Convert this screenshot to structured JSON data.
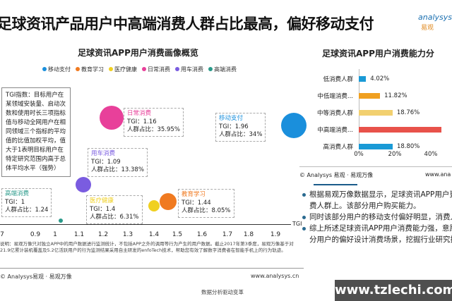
{
  "title": "足球资讯产品用户中高端消费人群占比最高，偏好移动支付",
  "logo": {
    "name": "analysys",
    "sub": "易观"
  },
  "chart_data": [
    {
      "type": "scatter",
      "title": "足球资讯APP用户消费画像概览",
      "xlabel": "TGI",
      "xticks": [
        "7",
        "0.9",
        "1",
        "1.1",
        "1.2",
        "1.3",
        "1.4",
        "1.5",
        "1.6",
        "1.7",
        "1.8",
        "1.9"
      ],
      "legend": [
        "移动支付",
        "教育学习",
        "医疗健康",
        "日常消费",
        "用车消费",
        "高端消费"
      ],
      "series": [
        {
          "name": "移动支付",
          "tgi": 1.96,
          "share_label": "34%",
          "share": 34,
          "color": "#1a8fdc",
          "tgi_label": "TGI：1.96",
          "share_text": "人群占比：34%"
        },
        {
          "name": "日常消费",
          "tgi": 1.16,
          "share": 35.95,
          "color": "#e8409a",
          "tgi_label": "TGI：1.16",
          "share_text": "人群占比：35.95%"
        },
        {
          "name": "用车消费",
          "tgi": 1.09,
          "share": 13.38,
          "color": "#7a5ce0",
          "tgi_label": "TGI：1.09",
          "share_text": "人群占比：13.38%"
        },
        {
          "name": "高端消费",
          "tgi": 1,
          "share": 1.24,
          "color": "#2a9a8a",
          "tgi_label": "TGI：1",
          "share_text": "人群占比：1.24"
        },
        {
          "name": "医疗健康",
          "tgi": 1.4,
          "share": 6.31,
          "color": "#f0d020",
          "tgi_label": "TGI：1.4",
          "share_text": "人群占比：6.31%"
        },
        {
          "name": "教育学习",
          "tgi": 1.44,
          "share": 8.05,
          "color": "#f07a20",
          "tgi_label": "TGI：1.44",
          "share_text": "人群占比：8.05%"
        }
      ],
      "tgi_note": "TGI指数：目标用户在某领域安装量、启动次数和使用时长三项指标值与移动全网用户在相同领域三个指标的平均值的比值加权平均，值大于1表明目标用户在特定研究范围内高于总体平均水平（强势）"
    },
    {
      "type": "bar",
      "orientation": "horizontal",
      "title": "足球资讯APP用户消费能力分",
      "categories": [
        "低消费人群",
        "中低端消费...",
        "中等消费人群",
        "中高端消费...",
        "高消费人群"
      ],
      "values": [
        4.02,
        11.82,
        18.76,
        46,
        18.8
      ],
      "value_labels": [
        "4.02%",
        "11.82%",
        "18.76%",
        "",
        "18.80%"
      ],
      "colors": [
        "#1a9ad6",
        "#f0a020",
        "#f2d070",
        "#e8524a",
        "#1a9ad6"
      ],
      "xticks": [
        "0%",
        "20%",
        "40%"
      ],
      "xlim": [
        0,
        50
      ]
    }
  ],
  "note": "说明：易观万像只对独立APP中的用户数据进行监测统计，不包括APP之外的调用等行为产生的用户数据。截止2017年第3季度，易观万像基于对21.9亿累计装机覆盖及5.2亿活跃用户的行为监测结果采用自主研发的enfoTech技术，帮助您有效了解数字消费者在智能手机上的行为轨迹。",
  "source": "© Analysys易观 · 易观万像",
  "url": "www.analysys.cn",
  "footer": "数据分析驱动变革",
  "right_source": "© Analysys 易观 · 易观万像",
  "right_url": "www.ana",
  "bullets": [
    "根据易观万像数据显示，足球资讯APP用户更多集中在中高消费人群上。该部分用户购买能力。",
    "同时该部分用户的移动支付偏好明显，消费人群占比最高。",
    "综上所述足球资讯APP用户消费能力强，意愿高。可针对该部分用户的偏好设计消费场景，挖掘行业研究投资"
  ],
  "watermark": "www.tzlechi.com"
}
